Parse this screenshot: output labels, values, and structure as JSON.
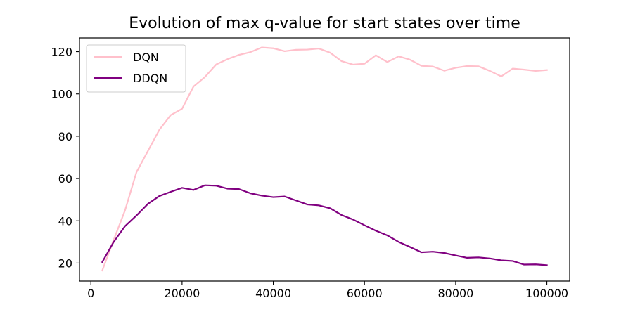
{
  "chart_data": {
    "type": "line",
    "title": "Evolution of max q-value for start states over time",
    "xlabel": "",
    "ylabel": "",
    "xlim": [
      -2500,
      105000
    ],
    "ylim": [
      11.5,
      126.5
    ],
    "x_ticks": [
      0,
      20000,
      40000,
      60000,
      80000,
      100000
    ],
    "x_tick_labels": [
      "0",
      "20000",
      "40000",
      "60000",
      "80000",
      "100000"
    ],
    "y_ticks": [
      20,
      40,
      60,
      80,
      100,
      120
    ],
    "y_tick_labels": [
      "20",
      "40",
      "60",
      "80",
      "100",
      "120"
    ],
    "grid": false,
    "legend_position": "top-left",
    "x": [
      2500,
      5000,
      7500,
      10000,
      12500,
      15000,
      17500,
      20000,
      22500,
      25000,
      27500,
      30000,
      32500,
      35000,
      37500,
      40000,
      42500,
      45000,
      47500,
      50000,
      52500,
      55000,
      57500,
      60000,
      62500,
      65000,
      67500,
      70000,
      72500,
      75000,
      77500,
      80000,
      82500,
      85000,
      87500,
      90000,
      92500,
      95000,
      97500,
      100000
    ],
    "series": [
      {
        "name": "DQN",
        "color": "#ffc0cb",
        "values": [
          16.5,
          31.0,
          45.0,
          63.0,
          73.0,
          83.0,
          90.0,
          93.0,
          103.5,
          108.0,
          114.0,
          116.5,
          118.5,
          119.8,
          122.0,
          121.6,
          120.2,
          120.9,
          121.0,
          121.5,
          119.5,
          115.5,
          113.9,
          114.3,
          118.3,
          115.1,
          117.8,
          116.2,
          113.3,
          113.0,
          111.0,
          112.4,
          113.2,
          113.1,
          110.9,
          108.3,
          112.0,
          111.5,
          110.9,
          111.3
        ]
      },
      {
        "name": "DDQN",
        "color": "#800080",
        "values": [
          20.5,
          30.0,
          37.5,
          42.5,
          48.0,
          51.7,
          53.7,
          55.6,
          54.6,
          56.8,
          56.6,
          55.2,
          55.0,
          53.0,
          51.9,
          51.2,
          51.5,
          49.6,
          47.7,
          47.3,
          45.9,
          42.7,
          40.6,
          37.9,
          35.3,
          33.1,
          30.0,
          27.6,
          25.1,
          25.4,
          24.8,
          23.6,
          22.5,
          22.7,
          22.2,
          21.3,
          21.0,
          19.3,
          19.4,
          19.0
        ]
      }
    ]
  }
}
